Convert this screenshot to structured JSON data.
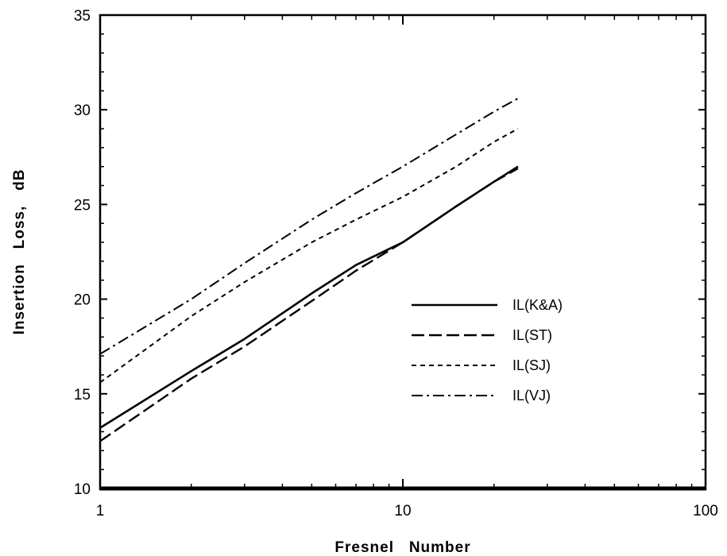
{
  "chart_data": {
    "type": "line",
    "xlabel": "Fresnel   Number",
    "ylabel": "Insertion   Loss,   dB",
    "xscale": "log",
    "xlim": [
      1,
      100
    ],
    "ylim": [
      10,
      35
    ],
    "xticks": [
      1,
      10,
      100
    ],
    "xtick_labels": [
      "1",
      "10",
      "100"
    ],
    "yticks": [
      10,
      15,
      20,
      25,
      30,
      35
    ],
    "ytick_labels": [
      "10",
      "15",
      "20",
      "25",
      "30",
      "35"
    ],
    "grid": false,
    "legend_position": "center-right",
    "series": [
      {
        "name": "IL(K&A)",
        "style": "solid",
        "x": [
          1,
          2,
          3,
          5,
          7,
          10,
          15,
          20,
          24
        ],
        "y": [
          13.2,
          16.2,
          17.9,
          20.3,
          21.8,
          23.0,
          24.9,
          26.2,
          27.0
        ]
      },
      {
        "name": "IL(ST)",
        "style": "long-dash",
        "x": [
          1,
          2,
          3,
          5,
          7,
          10,
          15,
          20,
          24
        ],
        "y": [
          12.5,
          15.8,
          17.5,
          19.9,
          21.5,
          23.0,
          24.9,
          26.2,
          26.9
        ]
      },
      {
        "name": "IL(SJ)",
        "style": "short-dash",
        "x": [
          1,
          2,
          3,
          5,
          7,
          10,
          15,
          20,
          24
        ],
        "y": [
          15.6,
          19.1,
          20.9,
          23.0,
          24.2,
          25.4,
          27.0,
          28.3,
          29.0
        ]
      },
      {
        "name": "IL(VJ)",
        "style": "dash-dot",
        "x": [
          1,
          2,
          3,
          5,
          7,
          10,
          15,
          20,
          24
        ],
        "y": [
          17.1,
          20.0,
          21.9,
          24.2,
          25.6,
          27.0,
          28.7,
          29.9,
          30.6
        ]
      }
    ]
  }
}
